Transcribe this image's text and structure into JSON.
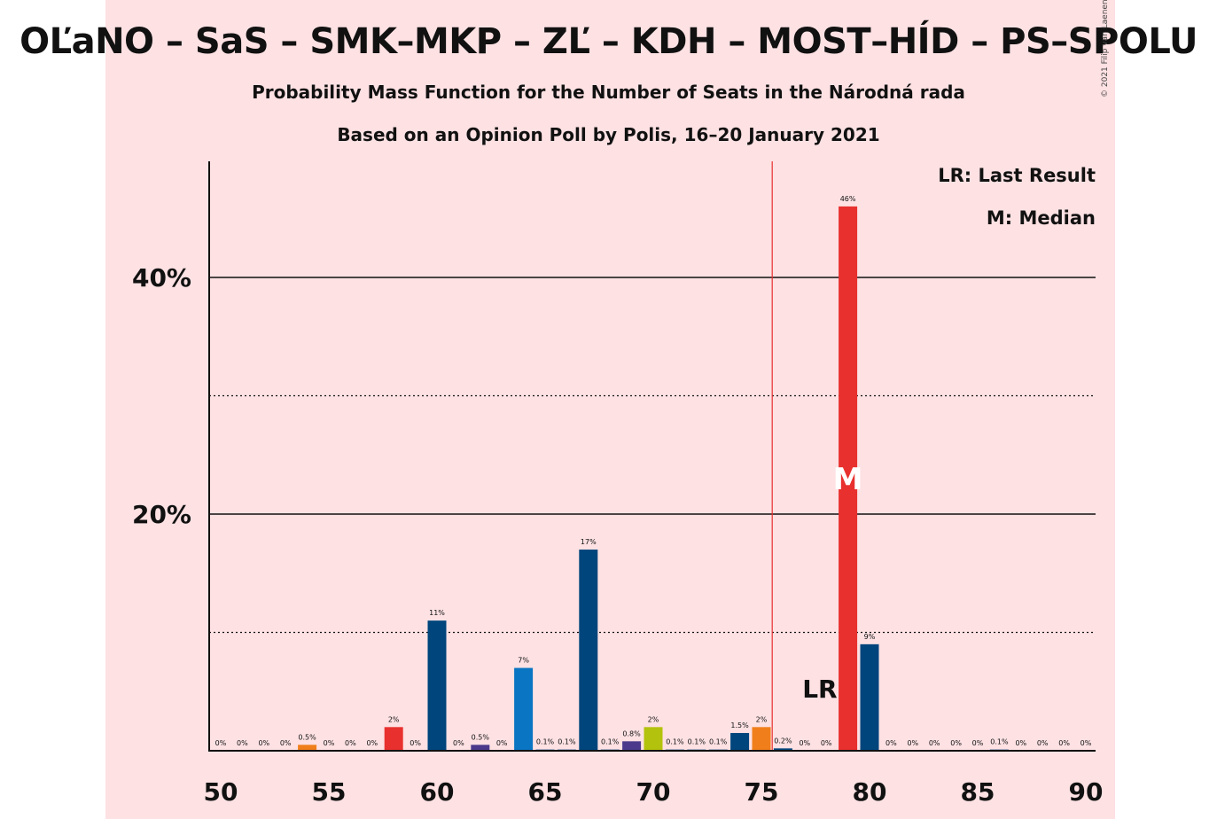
{
  "header": {
    "title": "OĽaNO – SaS – SMK–MKP – ZĽ – KDH – MOST–HÍD – PS–SPOLU",
    "subtitle1": "Probability Mass Function for the Number of Seats in the Národná rada",
    "subtitle2": "Based on an Opinion Poll by Polis, 16–20 January 2021",
    "copyright": "© 2021 Filip van Laenen"
  },
  "legend": {
    "last_result": "LR: Last Result",
    "median": "M: Median"
  },
  "colors": {
    "background_band": "#fde1e3",
    "majority_line": "#e8302e",
    "navy": "#00457c",
    "red": "#e8302e",
    "orange": "#f07f1b",
    "purple": "#4b3a8c",
    "blue": "#0a75c2",
    "lime": "#b3c20c"
  },
  "chart_data": {
    "type": "bar",
    "title": "OĽaNO – SaS – SMK–MKP – ZĽ – KDH – MOST–HÍD – PS–SPOLU",
    "xlabel": "",
    "ylabel": "",
    "xlim": [
      50,
      90
    ],
    "ylim": [
      0,
      50
    ],
    "x_ticks": [
      "50",
      "55",
      "60",
      "65",
      "70",
      "75",
      "80",
      "85",
      "90"
    ],
    "y_ticks": [
      {
        "value": 20,
        "label": "20%"
      },
      {
        "value": 40,
        "label": "40%"
      }
    ],
    "gridlines": {
      "solid": [
        20,
        40
      ],
      "dotted": [
        10,
        30
      ]
    },
    "majority_seats": 76,
    "last_result_seat": 79,
    "last_result_marker": "LR",
    "median_seat": 79,
    "median_marker": "M",
    "bars": [
      {
        "x": 50,
        "value": 0,
        "label": "0%",
        "color": "navy"
      },
      {
        "x": 51,
        "value": 0,
        "label": "0%",
        "color": "navy"
      },
      {
        "x": 52,
        "value": 0,
        "label": "0%",
        "color": "navy"
      },
      {
        "x": 53,
        "value": 0,
        "label": "0%",
        "color": "navy"
      },
      {
        "x": 54,
        "value": 0.5,
        "label": "0.5%",
        "color": "orange"
      },
      {
        "x": 55,
        "value": 0,
        "label": "0%",
        "color": "navy"
      },
      {
        "x": 56,
        "value": 0,
        "label": "0%",
        "color": "navy"
      },
      {
        "x": 57,
        "value": 0,
        "label": "0%",
        "color": "navy"
      },
      {
        "x": 58,
        "value": 2,
        "label": "2%",
        "color": "red"
      },
      {
        "x": 59,
        "value": 0,
        "label": "0%",
        "color": "navy"
      },
      {
        "x": 60,
        "value": 11,
        "label": "11%",
        "color": "navy"
      },
      {
        "x": 61,
        "value": 0,
        "label": "0%",
        "color": "navy"
      },
      {
        "x": 62,
        "value": 0.5,
        "label": "0.5%",
        "color": "purple"
      },
      {
        "x": 63,
        "value": 0,
        "label": "0%",
        "color": "navy"
      },
      {
        "x": 64,
        "value": 7,
        "label": "7%",
        "color": "blue"
      },
      {
        "x": 65,
        "value": 0.1,
        "label": "0.1%",
        "color": "navy"
      },
      {
        "x": 66,
        "value": 0.1,
        "label": "0.1%",
        "color": "navy"
      },
      {
        "x": 67,
        "value": 17,
        "label": "17%",
        "color": "navy"
      },
      {
        "x": 68,
        "value": 0.1,
        "label": "0.1%",
        "color": "navy"
      },
      {
        "x": 69,
        "value": 0.8,
        "label": "0.8%",
        "color": "purple"
      },
      {
        "x": 70,
        "value": 2,
        "label": "2%",
        "color": "lime"
      },
      {
        "x": 71,
        "value": 0.1,
        "label": "0.1%",
        "color": "navy"
      },
      {
        "x": 72,
        "value": 0.1,
        "label": "0.1%",
        "color": "navy"
      },
      {
        "x": 73,
        "value": 0.1,
        "label": "0.1%",
        "color": "navy"
      },
      {
        "x": 74,
        "value": 1.5,
        "label": "1.5%",
        "color": "navy"
      },
      {
        "x": 75,
        "value": 2,
        "label": "2%",
        "color": "orange"
      },
      {
        "x": 76,
        "value": 0.2,
        "label": "0.2%",
        "color": "navy"
      },
      {
        "x": 77,
        "value": 0,
        "label": "0%",
        "color": "navy"
      },
      {
        "x": 78,
        "value": 0,
        "label": "0%",
        "color": "navy"
      },
      {
        "x": 79,
        "value": 46,
        "label": "46%",
        "color": "red"
      },
      {
        "x": 80,
        "value": 9,
        "label": "9%",
        "color": "navy"
      },
      {
        "x": 81,
        "value": 0,
        "label": "0%",
        "color": "navy"
      },
      {
        "x": 82,
        "value": 0,
        "label": "0%",
        "color": "navy"
      },
      {
        "x": 83,
        "value": 0,
        "label": "0%",
        "color": "navy"
      },
      {
        "x": 84,
        "value": 0,
        "label": "0%",
        "color": "navy"
      },
      {
        "x": 85,
        "value": 0,
        "label": "0%",
        "color": "navy"
      },
      {
        "x": 86,
        "value": 0.1,
        "label": "0.1%",
        "color": "navy"
      },
      {
        "x": 87,
        "value": 0,
        "label": "0%",
        "color": "navy"
      },
      {
        "x": 88,
        "value": 0,
        "label": "0%",
        "color": "navy"
      },
      {
        "x": 89,
        "value": 0,
        "label": "0%",
        "color": "navy"
      },
      {
        "x": 90,
        "value": 0,
        "label": "0%",
        "color": "navy"
      }
    ]
  }
}
